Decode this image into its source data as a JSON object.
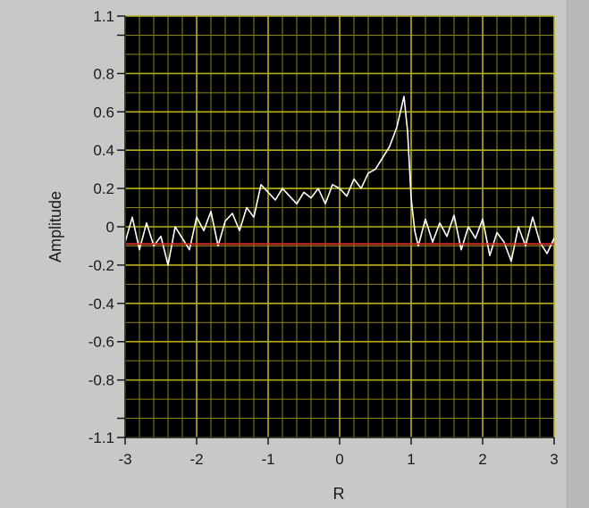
{
  "colors": {
    "panel_background": "#c8c8c8",
    "plot_background": "#000000",
    "grid_color": "#b7b21a",
    "minor_grid_color": "#8a8614",
    "signal_color": "#ffffff",
    "baseline_color": "#e0302a"
  },
  "chart_data": {
    "type": "line",
    "title": "",
    "xlabel": "R",
    "ylabel": "Amplitude",
    "xlim": [
      -3,
      3
    ],
    "ylim": [
      -1.1,
      1.1
    ],
    "grid": true,
    "x_ticks": [
      "-3",
      "-2",
      "-1",
      "0",
      "1",
      "2",
      "3"
    ],
    "x_tick_values": [
      -3,
      -2,
      -1,
      0,
      1,
      2,
      3
    ],
    "y_ticks": [
      "1.1",
      "0.8",
      "0.6",
      "0.4",
      "0.2",
      "0",
      "-0.2",
      "-0.4",
      "-0.6",
      "-0.8",
      "-1.1"
    ],
    "y_tick_values": [
      1.1,
      0.8,
      0.6,
      0.4,
      0.2,
      0,
      -0.2,
      -0.4,
      -0.6,
      -0.8,
      -1.1
    ],
    "series": [
      {
        "color": "#ffffff",
        "x": [
          -3.0,
          -2.9,
          -2.8,
          -2.7,
          -2.6,
          -2.5,
          -2.4,
          -2.3,
          -2.2,
          -2.1,
          -2.0,
          -1.9,
          -1.8,
          -1.7,
          -1.6,
          -1.5,
          -1.4,
          -1.3,
          -1.2,
          -1.1,
          -1.0,
          -0.9,
          -0.8,
          -0.7,
          -0.6,
          -0.5,
          -0.4,
          -0.3,
          -0.2,
          -0.1,
          0.0,
          0.1,
          0.2,
          0.3,
          0.4,
          0.5,
          0.6,
          0.7,
          0.8,
          0.85,
          0.9,
          0.95,
          1.0,
          1.05,
          1.1,
          1.2,
          1.3,
          1.4,
          1.5,
          1.6,
          1.7,
          1.8,
          1.9,
          2.0,
          2.1,
          2.2,
          2.3,
          2.4,
          2.5,
          2.6,
          2.7,
          2.8,
          2.9,
          3.0
        ],
        "values": [
          -0.08,
          0.05,
          -0.12,
          0.02,
          -0.1,
          -0.05,
          -0.2,
          0.0,
          -0.06,
          -0.12,
          0.05,
          -0.02,
          0.08,
          -0.1,
          0.03,
          0.07,
          -0.02,
          0.1,
          0.05,
          0.22,
          0.18,
          0.14,
          0.2,
          0.16,
          0.12,
          0.18,
          0.15,
          0.2,
          0.12,
          0.22,
          0.2,
          0.16,
          0.25,
          0.2,
          0.28,
          0.3,
          0.36,
          0.42,
          0.52,
          0.6,
          0.68,
          0.5,
          0.15,
          -0.02,
          -0.1,
          0.04,
          -0.08,
          0.02,
          -0.05,
          0.06,
          -0.12,
          0.0,
          -0.06,
          0.04,
          -0.15,
          -0.03,
          -0.08,
          -0.18,
          0.0,
          -0.1,
          0.05,
          -0.08,
          -0.14,
          -0.06
        ]
      },
      {
        "color": "#e0302a",
        "x": [
          -3.0,
          3.0
        ],
        "values": [
          -0.09,
          -0.09
        ]
      }
    ]
  }
}
